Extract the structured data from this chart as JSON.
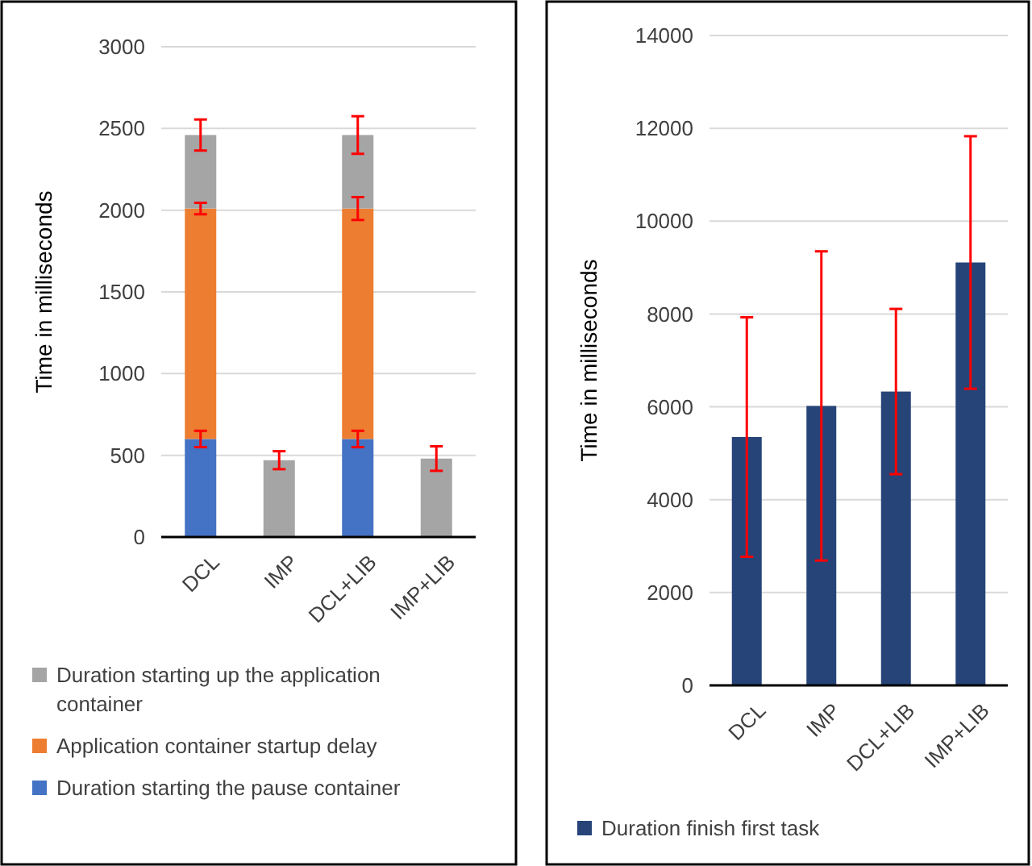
{
  "chart_data": [
    {
      "type": "bar",
      "stacked": true,
      "ylabel": "Time in milliseconds",
      "categories": [
        "DCL",
        "IMP",
        "DCL+LIB",
        "IMP+LIB"
      ],
      "ylim": [
        0,
        3000
      ],
      "yticks": [
        0,
        500,
        1000,
        1500,
        2000,
        2500,
        3000
      ],
      "grid": "y",
      "legend": "bottom",
      "series": [
        {
          "name": "Duration starting the pause container",
          "color": "#4472c4",
          "values": [
            600,
            0,
            600,
            0
          ],
          "errors": [
            50,
            null,
            50,
            null
          ]
        },
        {
          "name": "Application container startup delay",
          "color": "#ed7d31",
          "values": [
            1410,
            0,
            1410,
            0
          ],
          "errors": [
            35,
            null,
            70,
            null
          ]
        },
        {
          "name": "Duration starting up the application container",
          "color": "#a5a5a5",
          "values": [
            450,
            470,
            450,
            480
          ],
          "errors": [
            95,
            55,
            115,
            75
          ]
        }
      ]
    },
    {
      "type": "bar",
      "ylabel": "Time in milliseconds",
      "categories": [
        "DCL",
        "IMP",
        "DCL+LIB",
        "IMP+LIB"
      ],
      "ylim": [
        0,
        14000
      ],
      "yticks": [
        0,
        2000,
        4000,
        6000,
        8000,
        10000,
        12000,
        14000
      ],
      "grid": "y",
      "legend": "bottom",
      "series": [
        {
          "name": "Duration finish first task",
          "color": "#264478",
          "values": [
            5350,
            6020,
            6330,
            9110
          ],
          "errors": [
            2580,
            3330,
            1780,
            2720
          ]
        }
      ]
    }
  ]
}
